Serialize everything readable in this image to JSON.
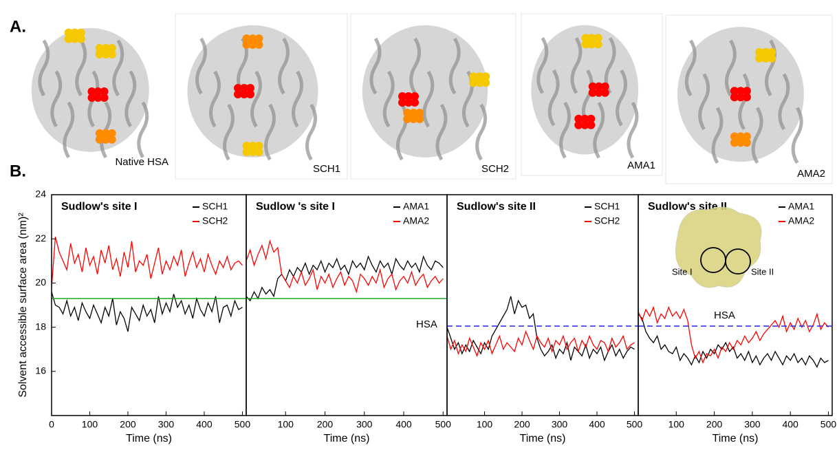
{
  "panel_a": {
    "label": "A.",
    "structures": [
      {
        "label": "Native HSA"
      },
      {
        "label": "SCH1"
      },
      {
        "label": "SCH2"
      },
      {
        "label": "AMA1"
      },
      {
        "label": "AMA2"
      }
    ]
  },
  "panel_b_label": "B.",
  "chart_data": [
    {
      "type": "line",
      "title": "Sudlow's site I",
      "ylabel": "Solvent accessible  surface area (nm)²",
      "x_label": "Time (ns)",
      "xlim": [
        0,
        510
      ],
      "xticks": [
        0,
        100,
        200,
        300,
        400,
        500
      ],
      "ylim": [
        14,
        24
      ],
      "yticks": [
        16,
        18,
        20,
        22,
        24
      ],
      "reference": {
        "value": 19.3,
        "color": "#22aa22",
        "style": "solid"
      },
      "x": [
        0,
        10,
        20,
        30,
        40,
        50,
        60,
        70,
        80,
        90,
        100,
        110,
        120,
        130,
        140,
        150,
        160,
        170,
        180,
        190,
        200,
        210,
        220,
        230,
        240,
        250,
        260,
        270,
        280,
        290,
        300,
        310,
        320,
        330,
        340,
        350,
        360,
        370,
        380,
        390,
        400,
        410,
        420,
        430,
        440,
        450,
        460,
        470,
        480,
        490,
        500
      ],
      "series": [
        {
          "name": "SCH1",
          "color": "#000000",
          "values": [
            19.6,
            19.0,
            18.9,
            18.6,
            19.2,
            18.5,
            18.9,
            18.3,
            19.1,
            18.7,
            18.4,
            19.0,
            18.6,
            18.2,
            18.9,
            18.5,
            19.3,
            18.1,
            18.7,
            18.4,
            17.8,
            18.9,
            18.6,
            18.3,
            19.0,
            18.5,
            18.8,
            18.2,
            19.4,
            18.6,
            19.1,
            18.7,
            19.5,
            18.9,
            19.2,
            18.6,
            19.0,
            18.4,
            19.3,
            18.8,
            18.5,
            19.1,
            18.7,
            19.4,
            18.2,
            18.9,
            19.0,
            18.5,
            19.2,
            18.8,
            18.9
          ]
        },
        {
          "name": "SCH2",
          "color": "#ff0000",
          "values": [
            19.8,
            22.1,
            21.4,
            21.0,
            20.6,
            21.8,
            20.9,
            21.3,
            20.5,
            21.6,
            20.8,
            21.2,
            20.4,
            21.5,
            20.9,
            21.7,
            20.6,
            21.1,
            20.3,
            21.4,
            20.7,
            21.9,
            20.5,
            21.0,
            20.8,
            21.3,
            20.2,
            20.9,
            21.6,
            20.4,
            21.0,
            20.6,
            21.2,
            20.8,
            21.5,
            20.3,
            20.9,
            21.4,
            20.7,
            21.1,
            20.5,
            21.3,
            20.8,
            20.4,
            21.0,
            20.7,
            21.2,
            20.6,
            20.9,
            21.0,
            20.8
          ]
        }
      ]
    },
    {
      "type": "line",
      "title": "Sudlow 's site I",
      "x_label": "Time (ns)",
      "xlim": [
        0,
        510
      ],
      "xticks": [
        100,
        200,
        300,
        400,
        500
      ],
      "ylim": [
        14,
        24
      ],
      "reference": {
        "value": 19.3,
        "color": "#22aa22",
        "style": "solid",
        "label": "HSA"
      },
      "x": [
        0,
        10,
        20,
        30,
        40,
        50,
        60,
        70,
        80,
        90,
        100,
        110,
        120,
        130,
        140,
        150,
        160,
        170,
        180,
        190,
        200,
        210,
        220,
        230,
        240,
        250,
        260,
        270,
        280,
        290,
        300,
        310,
        320,
        330,
        340,
        350,
        360,
        370,
        380,
        390,
        400,
        410,
        420,
        430,
        440,
        450,
        460,
        470,
        480,
        490,
        500
      ],
      "series": [
        {
          "name": "AMA1",
          "color": "#000000",
          "values": [
            19.4,
            19.2,
            19.6,
            19.3,
            19.8,
            19.5,
            19.7,
            19.4,
            20.2,
            20.4,
            20.1,
            20.6,
            20.3,
            20.7,
            20.5,
            20.9,
            20.4,
            20.8,
            20.6,
            21.0,
            20.5,
            20.9,
            20.7,
            21.1,
            20.6,
            20.8,
            20.4,
            21.0,
            20.7,
            20.9,
            20.6,
            21.2,
            20.8,
            20.5,
            21.0,
            20.7,
            20.9,
            20.4,
            21.1,
            20.8,
            20.6,
            21.0,
            20.7,
            20.9,
            20.5,
            21.2,
            20.8,
            20.6,
            21.0,
            20.9,
            20.7
          ]
        },
        {
          "name": "AMA2",
          "color": "#ff0000",
          "values": [
            21.0,
            21.5,
            20.8,
            21.3,
            21.7,
            21.1,
            21.9,
            21.4,
            21.6,
            20.4,
            20.1,
            19.8,
            20.3,
            20.0,
            20.5,
            19.9,
            20.2,
            20.6,
            19.7,
            20.3,
            20.0,
            20.4,
            19.8,
            20.2,
            20.5,
            19.9,
            20.3,
            20.1,
            19.6,
            20.4,
            20.2,
            19.9,
            20.3,
            20.0,
            20.6,
            19.8,
            20.2,
            20.4,
            19.7,
            20.1,
            20.3,
            20.0,
            20.5,
            19.9,
            20.2,
            20.4,
            19.8,
            20.1,
            20.3,
            20.0,
            20.2
          ]
        }
      ]
    },
    {
      "type": "line",
      "title": "Sudlow's site II",
      "x_label": "Time (ns)",
      "xlim": [
        0,
        510
      ],
      "xticks": [
        100,
        200,
        300,
        400,
        500
      ],
      "ylim": [
        14,
        24
      ],
      "reference": {
        "value": 18.05,
        "color": "#2222ee",
        "style": "dashed"
      },
      "x": [
        0,
        10,
        20,
        30,
        40,
        50,
        60,
        70,
        80,
        90,
        100,
        110,
        120,
        130,
        140,
        150,
        160,
        170,
        180,
        190,
        200,
        210,
        220,
        230,
        240,
        250,
        260,
        270,
        280,
        290,
        300,
        310,
        320,
        330,
        340,
        350,
        360,
        370,
        380,
        390,
        400,
        410,
        420,
        430,
        440,
        450,
        460,
        470,
        480,
        490,
        500
      ],
      "series": [
        {
          "name": "SCH1",
          "color": "#000000",
          "values": [
            18.0,
            17.5,
            17.0,
            17.3,
            16.8,
            17.2,
            16.9,
            17.4,
            17.1,
            16.8,
            17.3,
            17.0,
            17.6,
            17.9,
            18.2,
            18.5,
            18.8,
            19.4,
            18.6,
            19.2,
            18.9,
            19.0,
            18.4,
            18.6,
            17.5,
            17.0,
            16.7,
            16.9,
            17.2,
            16.6,
            17.0,
            16.8,
            17.3,
            16.5,
            17.1,
            16.9,
            16.7,
            17.2,
            16.6,
            17.0,
            16.8,
            17.1,
            16.5,
            16.9,
            17.2,
            16.7,
            17.0,
            16.6,
            16.9,
            17.1,
            17.0
          ]
        },
        {
          "name": "SCH2",
          "color": "#ff0000",
          "values": [
            17.6,
            17.0,
            17.4,
            16.8,
            17.2,
            16.9,
            17.5,
            17.1,
            16.7,
            17.3,
            17.0,
            17.4,
            16.8,
            17.2,
            17.6,
            17.0,
            17.3,
            17.1,
            16.9,
            17.5,
            17.2,
            17.8,
            17.4,
            17.0,
            17.6,
            17.3,
            17.1,
            17.5,
            16.9,
            17.4,
            17.2,
            17.6,
            17.0,
            17.3,
            17.5,
            16.9,
            17.4,
            17.1,
            17.6,
            17.2,
            17.0,
            17.4,
            17.3,
            16.9,
            17.5,
            17.1,
            17.3,
            17.6,
            17.0,
            17.2,
            17.3
          ]
        }
      ]
    },
    {
      "type": "line",
      "title": "Sudlow's site II",
      "x_label": "Time (ns)",
      "xlim": [
        0,
        510
      ],
      "xticks": [
        100,
        200,
        300,
        400,
        500
      ],
      "ylim": [
        14,
        24
      ],
      "reference": {
        "value": 18.05,
        "color": "#2222ee",
        "style": "dashed",
        "label": "HSA"
      },
      "inset_labels": [
        "Site I",
        "Site II"
      ],
      "x": [
        0,
        10,
        20,
        30,
        40,
        50,
        60,
        70,
        80,
        90,
        100,
        110,
        120,
        130,
        140,
        150,
        160,
        170,
        180,
        190,
        200,
        210,
        220,
        230,
        240,
        250,
        260,
        270,
        280,
        290,
        300,
        310,
        320,
        330,
        340,
        350,
        360,
        370,
        380,
        390,
        400,
        410,
        420,
        430,
        440,
        450,
        460,
        470,
        480,
        490,
        500
      ],
      "series": [
        {
          "name": "AMA1",
          "color": "#000000",
          "values": [
            18.6,
            18.4,
            17.8,
            17.5,
            17.3,
            17.6,
            17.0,
            17.2,
            16.9,
            16.8,
            17.1,
            16.5,
            16.8,
            16.6,
            16.3,
            16.7,
            16.4,
            16.9,
            16.6,
            17.0,
            16.8,
            17.2,
            17.0,
            17.3,
            16.9,
            17.1,
            16.6,
            16.8,
            16.5,
            16.9,
            16.4,
            16.7,
            16.3,
            16.6,
            16.8,
            16.5,
            16.9,
            16.6,
            16.3,
            16.7,
            16.5,
            16.8,
            16.4,
            16.6,
            16.3,
            16.7,
            16.5,
            16.2,
            16.6,
            16.4,
            16.5
          ]
        },
        {
          "name": "AMA2",
          "color": "#ff0000",
          "values": [
            18.7,
            18.3,
            18.8,
            18.5,
            18.9,
            18.2,
            18.6,
            18.4,
            18.9,
            18.5,
            18.7,
            18.4,
            18.8,
            18.3,
            17.2,
            16.6,
            16.9,
            16.4,
            16.8,
            16.7,
            17.0,
            16.6,
            17.1,
            16.9,
            17.3,
            17.0,
            17.4,
            17.2,
            17.6,
            17.3,
            17.5,
            17.8,
            17.4,
            17.7,
            17.9,
            18.1,
            18.3,
            18.0,
            18.5,
            17.8,
            18.2,
            17.9,
            18.4,
            18.0,
            18.3,
            17.8,
            18.1,
            18.6,
            17.9,
            18.2,
            18.0
          ]
        }
      ]
    }
  ]
}
